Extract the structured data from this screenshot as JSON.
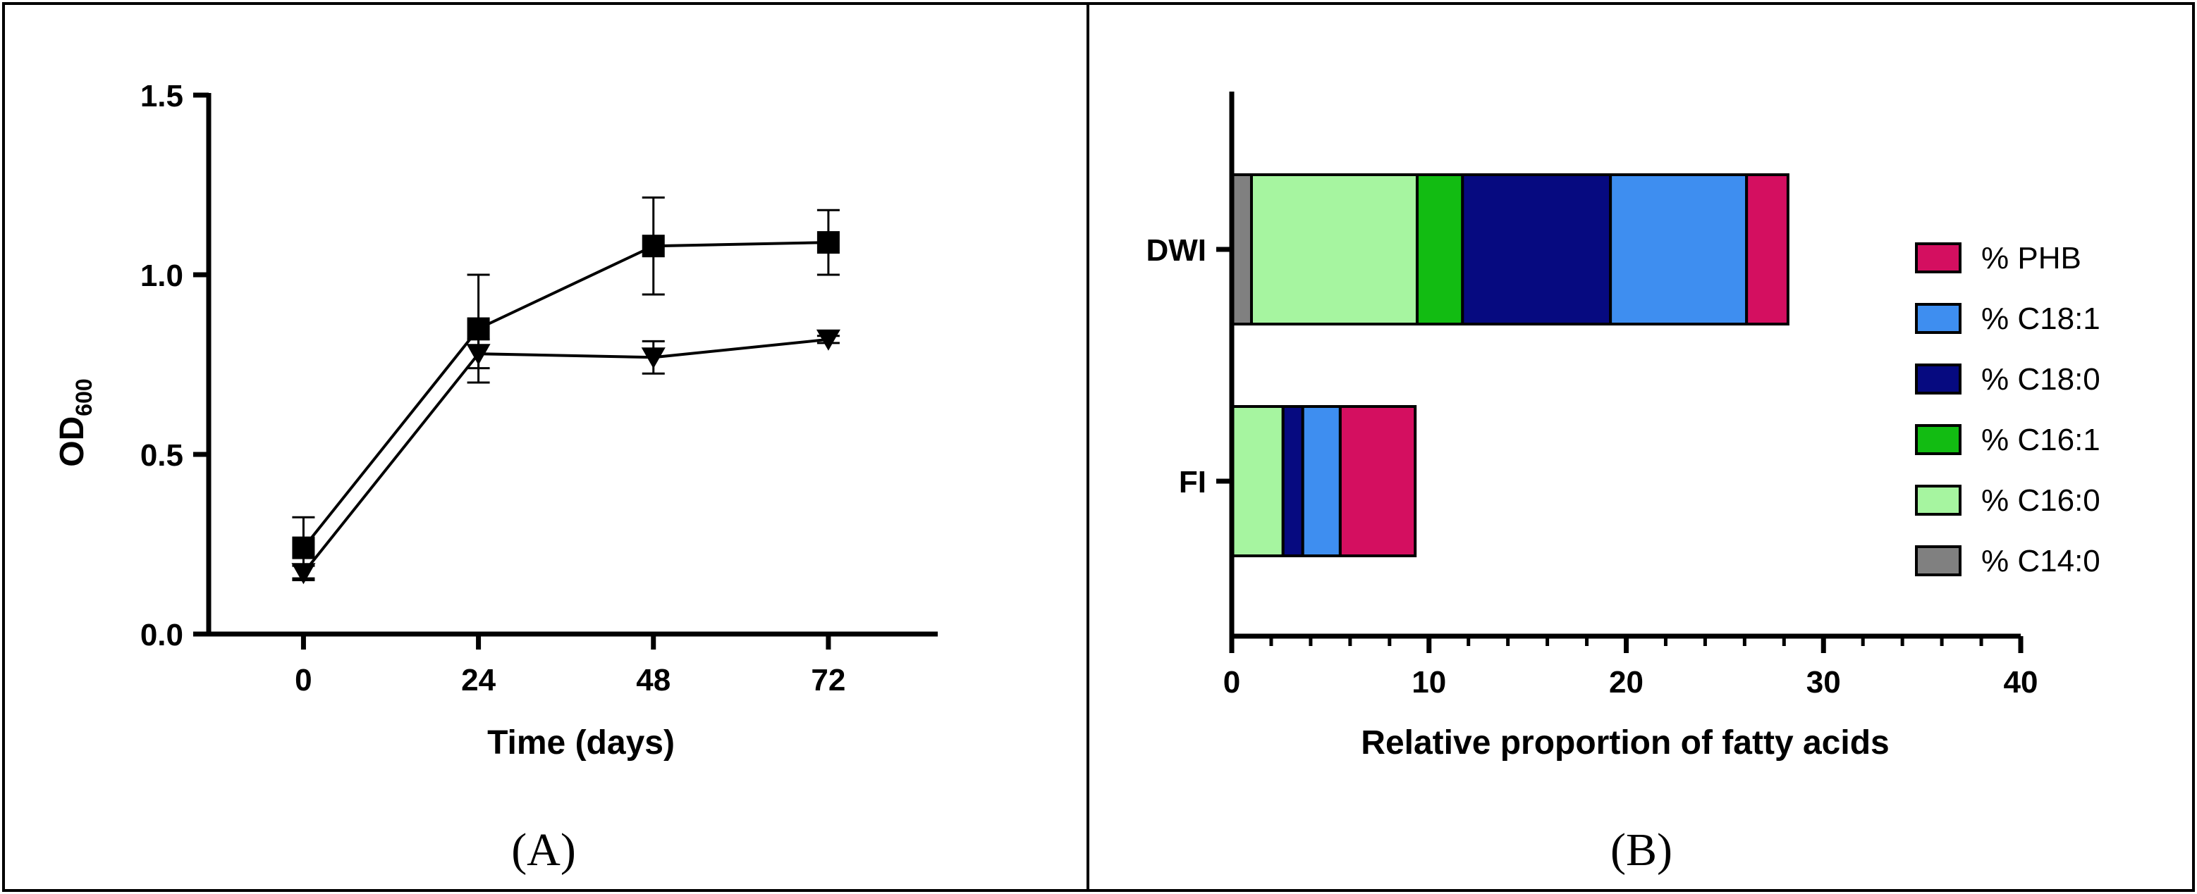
{
  "panels": {
    "a_label": "(A)",
    "b_label": "(B)"
  },
  "chart_data": [
    {
      "type": "line",
      "xlabel": "Time (days)",
      "ylabel_main": "OD",
      "ylabel_sub": "600",
      "xlim": [
        -13,
        87
      ],
      "ylim": [
        0,
        1.5
      ],
      "x_ticks": [
        0,
        24,
        48,
        72
      ],
      "x_tick_labels": [
        "0",
        "24",
        "48",
        "72"
      ],
      "y_ticks": [
        0,
        0.5,
        1.0,
        1.5
      ],
      "y_tick_labels": [
        "0.0",
        "0.5",
        "1.0",
        "1.5"
      ],
      "grid": false,
      "series": [
        {
          "marker": "square",
          "x": [
            0,
            24,
            48,
            72
          ],
          "y": [
            0.24,
            0.85,
            1.08,
            1.09
          ],
          "err": [
            0.085,
            0.15,
            0.135,
            0.09
          ]
        },
        {
          "marker": "triangle-down",
          "x": [
            0,
            24,
            48,
            72
          ],
          "y": [
            0.17,
            0.78,
            0.77,
            0.82
          ],
          "err": [
            0.02,
            0.04,
            0.045,
            0.01
          ]
        }
      ]
    },
    {
      "type": "bar",
      "orientation": "horizontal",
      "stacked": true,
      "categories": [
        "DWI",
        "FI"
      ],
      "xlabel": "Relative proportion of fatty acids",
      "xlim": [
        0,
        40
      ],
      "x_ticks": [
        0,
        10,
        20,
        30,
        40
      ],
      "x_tick_labels": [
        "0",
        "10",
        "20",
        "30",
        "40"
      ],
      "grid": false,
      "legend_position": "right",
      "series": [
        {
          "name": "% C14:0",
          "color": "#808080",
          "values": [
            1.0,
            0.0
          ]
        },
        {
          "name": "% C16:0",
          "color": "#a6f5a0",
          "values": [
            8.4,
            2.6
          ]
        },
        {
          "name": "% C16:1",
          "color": "#12bc12",
          "values": [
            2.3,
            0.0
          ]
        },
        {
          "name": "% C18:0",
          "color": "#060a80",
          "values": [
            7.5,
            1.0
          ]
        },
        {
          "name": "% C18:1",
          "color": "#3e8ef0",
          "values": [
            6.9,
            1.9
          ]
        },
        {
          "name": "% PHB",
          "color": "#d40f60",
          "values": [
            2.1,
            3.8
          ]
        }
      ],
      "legend_order": [
        "% PHB",
        "% C18:1",
        "% C18:0",
        "% C16:1",
        "% C16:0",
        "% C14:0"
      ]
    }
  ]
}
